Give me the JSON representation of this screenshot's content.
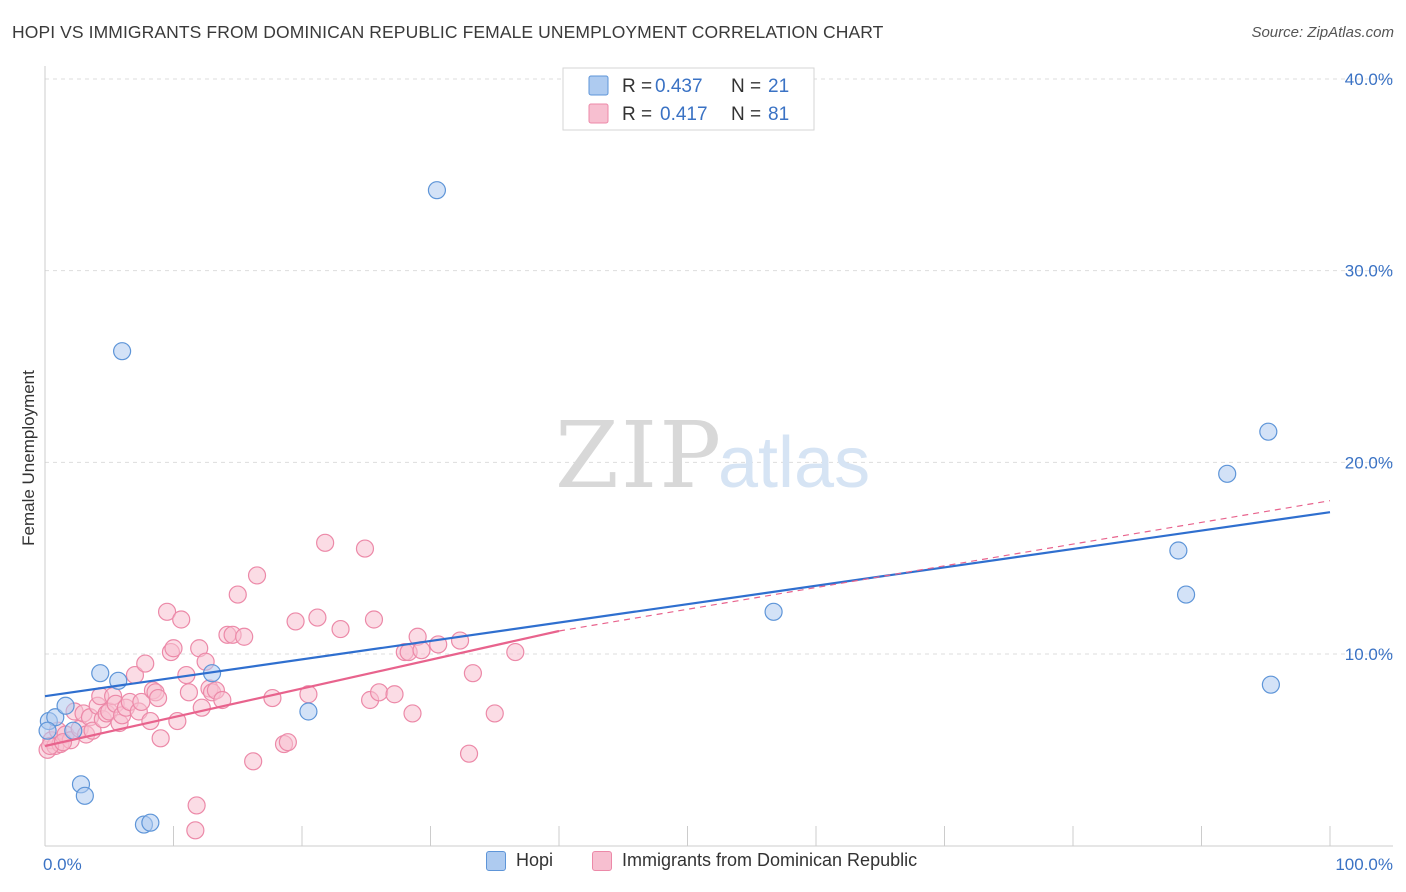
{
  "title": "HOPI VS IMMIGRANTS FROM DOMINICAN REPUBLIC FEMALE UNEMPLOYMENT CORRELATION CHART",
  "source": "Source: ZipAtlas.com",
  "watermark": {
    "zip": "ZIP",
    "atlas": "atlas"
  },
  "colors": {
    "hopi_fill": "#aecbf0",
    "hopi_stroke": "#5e95d8",
    "hopi_line": "#2f6fcf",
    "dom_fill": "#f7bfd0",
    "dom_stroke": "#ec89a8",
    "dom_line": "#e8638d",
    "grid": "#dddddd",
    "accent_text": "#3a72c4"
  },
  "legend": {
    "r_label": "R =",
    "n_label": "N =",
    "hopi": {
      "r": "0.437",
      "n": "21"
    },
    "dom": {
      "r": "0.417",
      "n": "81"
    }
  },
  "bottom_legend": {
    "hopi": "Hopi",
    "dom": "Immigrants from Dominican Republic"
  },
  "chart_data": {
    "type": "scatter",
    "title": "HOPI VS IMMIGRANTS FROM DOMINICAN REPUBLIC FEMALE UNEMPLOYMENT CORRELATION CHART",
    "xlabel": "",
    "ylabel": "Female Unemployment",
    "xlim": [
      0,
      100
    ],
    "ylim": [
      0,
      41
    ],
    "x_tick_labels": [
      "0.0%",
      "100.0%"
    ],
    "y_ticks": [
      10,
      20,
      30,
      40
    ],
    "y_tick_labels": [
      "10.0%",
      "20.0%",
      "30.0%",
      "40.0%"
    ],
    "series": [
      {
        "name": "Hopi",
        "r": 0.437,
        "n": 21,
        "trend": {
          "x": [
            0,
            100
          ],
          "y": [
            7.8,
            17.4
          ]
        },
        "points": [
          [
            0.3,
            6.5
          ],
          [
            0.8,
            6.7
          ],
          [
            1.6,
            7.3
          ],
          [
            2.2,
            6.0
          ],
          [
            2.8,
            3.2
          ],
          [
            3.1,
            2.6
          ],
          [
            4.3,
            9.0
          ],
          [
            5.7,
            8.6
          ],
          [
            6.0,
            25.8
          ],
          [
            7.7,
            1.1
          ],
          [
            8.2,
            1.2
          ],
          [
            13.0,
            9.0
          ],
          [
            20.5,
            7.0
          ],
          [
            30.5,
            34.2
          ],
          [
            56.7,
            12.2
          ],
          [
            88.2,
            15.4
          ],
          [
            88.8,
            13.1
          ],
          [
            92.0,
            19.4
          ],
          [
            95.2,
            21.6
          ],
          [
            95.4,
            8.4
          ],
          [
            0.2,
            6.0
          ]
        ]
      },
      {
        "name": "Immigrants from Dominican Republic",
        "r": 0.417,
        "n": 81,
        "trend": {
          "x": [
            0,
            40
          ],
          "y": [
            5.2,
            11.2
          ]
        },
        "trend_dashed": {
          "x": [
            40,
            100
          ],
          "y": [
            11.2,
            18.0
          ]
        },
        "points": [
          [
            0.2,
            5.0
          ],
          [
            0.5,
            5.5
          ],
          [
            0.8,
            5.2
          ],
          [
            1.0,
            6.0
          ],
          [
            1.2,
            5.3
          ],
          [
            1.6,
            5.8
          ],
          [
            2.0,
            5.5
          ],
          [
            2.3,
            7.0
          ],
          [
            2.7,
            6.1
          ],
          [
            3.0,
            6.9
          ],
          [
            3.2,
            5.8
          ],
          [
            3.5,
            6.7
          ],
          [
            3.7,
            6.0
          ],
          [
            4.1,
            7.3
          ],
          [
            4.3,
            7.8
          ],
          [
            4.5,
            6.6
          ],
          [
            4.8,
            6.9
          ],
          [
            5.0,
            7.0
          ],
          [
            5.3,
            7.8
          ],
          [
            5.5,
            7.4
          ],
          [
            5.8,
            6.4
          ],
          [
            6.0,
            6.8
          ],
          [
            6.3,
            7.2
          ],
          [
            6.6,
            7.5
          ],
          [
            7.0,
            8.9
          ],
          [
            7.3,
            7.0
          ],
          [
            7.5,
            7.5
          ],
          [
            7.8,
            9.5
          ],
          [
            8.2,
            6.5
          ],
          [
            8.4,
            8.1
          ],
          [
            8.6,
            8.0
          ],
          [
            8.8,
            7.7
          ],
          [
            9.0,
            5.6
          ],
          [
            9.5,
            12.2
          ],
          [
            9.8,
            10.1
          ],
          [
            10.0,
            10.3
          ],
          [
            10.3,
            6.5
          ],
          [
            10.6,
            11.8
          ],
          [
            11.0,
            8.9
          ],
          [
            11.2,
            8.0
          ],
          [
            11.8,
            2.1
          ],
          [
            12.0,
            10.3
          ],
          [
            12.2,
            7.2
          ],
          [
            12.5,
            9.6
          ],
          [
            12.8,
            8.2
          ],
          [
            13.0,
            8.0
          ],
          [
            13.3,
            8.1
          ],
          [
            13.8,
            7.6
          ],
          [
            14.2,
            11.0
          ],
          [
            14.6,
            11.0
          ],
          [
            15.0,
            13.1
          ],
          [
            15.5,
            10.9
          ],
          [
            16.2,
            4.4
          ],
          [
            16.5,
            14.1
          ],
          [
            17.7,
            7.7
          ],
          [
            18.6,
            5.3
          ],
          [
            18.9,
            5.4
          ],
          [
            19.5,
            11.7
          ],
          [
            20.5,
            7.9
          ],
          [
            21.2,
            11.9
          ],
          [
            21.8,
            15.8
          ],
          [
            23.0,
            11.3
          ],
          [
            24.9,
            15.5
          ],
          [
            25.3,
            7.6
          ],
          [
            25.6,
            11.8
          ],
          [
            26.0,
            8.0
          ],
          [
            27.2,
            7.9
          ],
          [
            28.0,
            10.1
          ],
          [
            28.3,
            10.1
          ],
          [
            28.6,
            6.9
          ],
          [
            29.0,
            10.9
          ],
          [
            29.3,
            10.2
          ],
          [
            30.6,
            10.5
          ],
          [
            32.3,
            10.7
          ],
          [
            33.0,
            4.8
          ],
          [
            33.3,
            9.0
          ],
          [
            35.0,
            6.9
          ],
          [
            36.6,
            10.1
          ],
          [
            11.7,
            0.8
          ],
          [
            0.4,
            5.2
          ],
          [
            1.4,
            5.4
          ]
        ]
      }
    ]
  }
}
